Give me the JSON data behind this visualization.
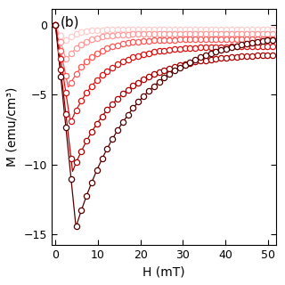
{
  "title_label": "(b)",
  "xlabel": "H (mT)",
  "ylabel": "M (emu/cm³)",
  "xlim": [
    -1,
    52
  ],
  "ylim": [
    -15.8,
    1.2
  ],
  "xticks": [
    0,
    10,
    20,
    30,
    40,
    50
  ],
  "yticks": [
    -15,
    -10,
    -5,
    0
  ],
  "colors": [
    "#FFCCCC",
    "#FF9999",
    "#FF5555",
    "#DD1111",
    "#AA0000",
    "#550000"
  ],
  "curve_params": [
    [
      -1.2,
      2.0,
      0.35,
      -0.3
    ],
    [
      -2.5,
      2.5,
      0.25,
      -0.6
    ],
    [
      -4.5,
      3.0,
      0.18,
      -1.0
    ],
    [
      -7.0,
      3.5,
      0.13,
      -1.5
    ],
    [
      -10.5,
      4.0,
      0.09,
      -2.0
    ],
    [
      -14.5,
      4.8,
      0.07,
      -0.5
    ]
  ],
  "num_curves": 6,
  "background": "#ffffff",
  "marker_step": 7,
  "marker_size": 4.5,
  "line_width": 0.9
}
